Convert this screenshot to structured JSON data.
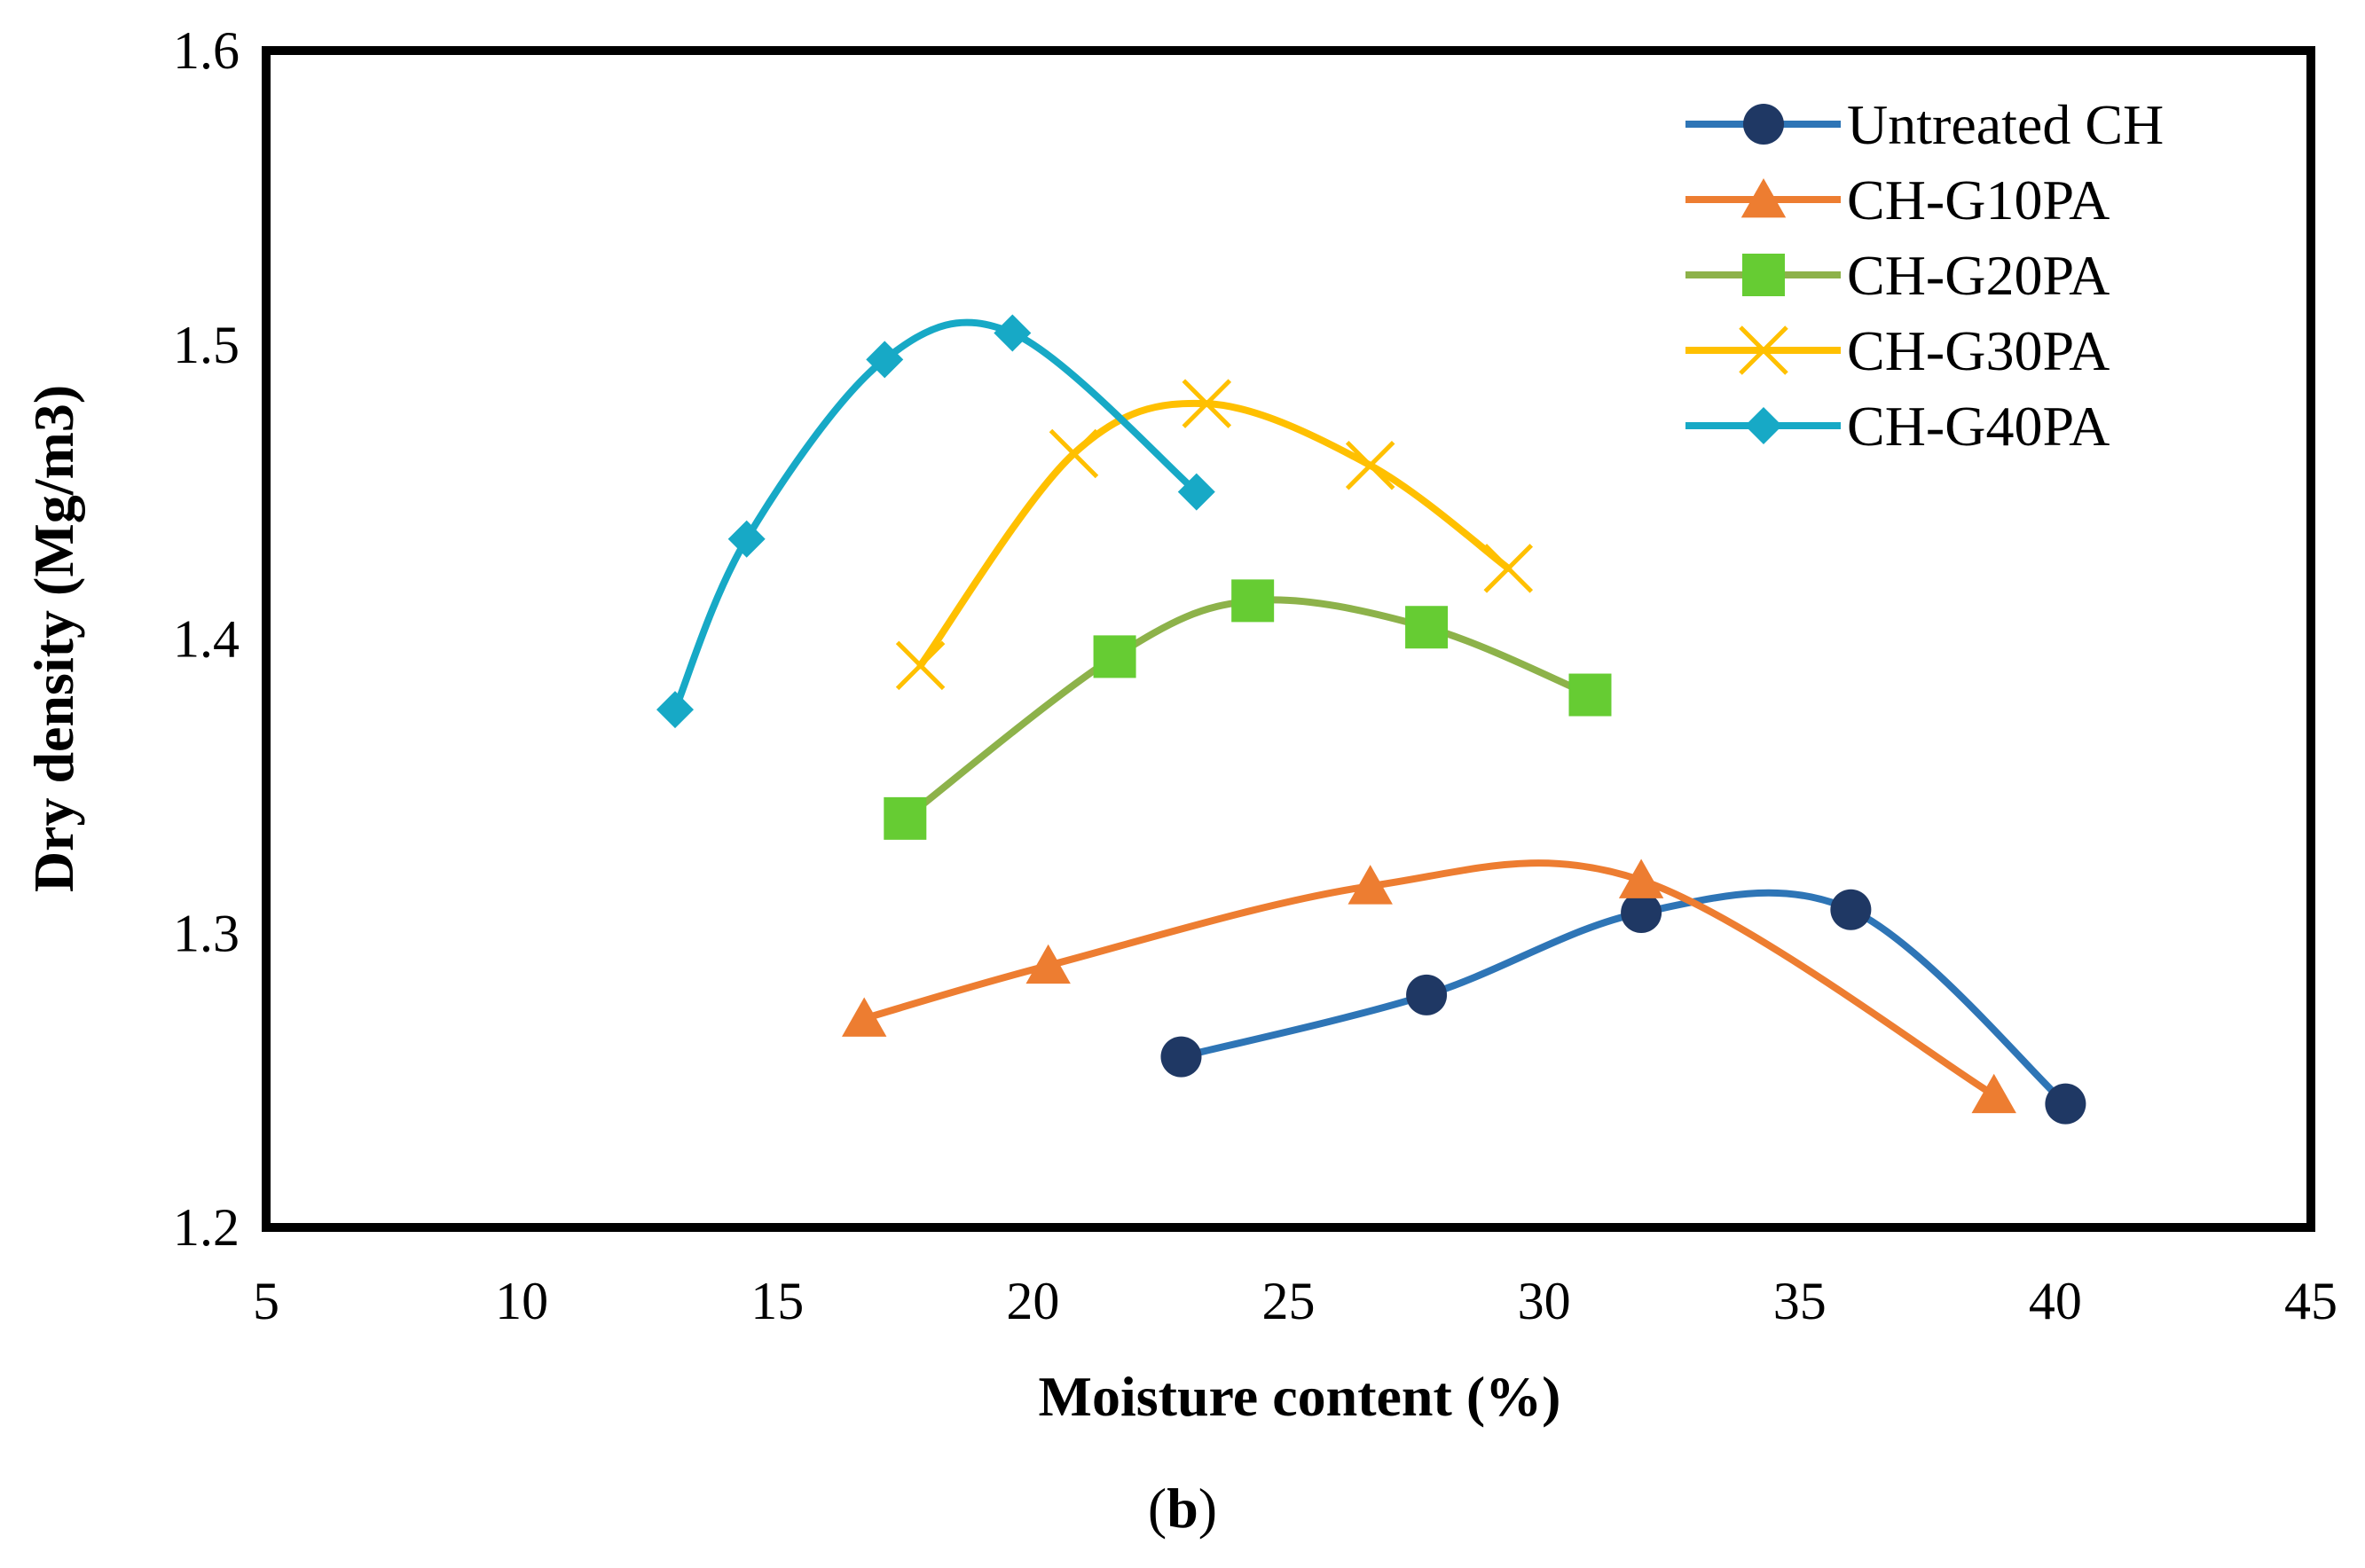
{
  "chart_data": {
    "type": "line",
    "title": "",
    "xlabel": "Moisture content (%)",
    "ylabel": "Dry density (Mg/m3)",
    "xlim": [
      5,
      45
    ],
    "ylim": [
      1.2,
      1.6
    ],
    "x_ticks": [
      5,
      10,
      15,
      20,
      25,
      30,
      35,
      40,
      45
    ],
    "x_tick_labels": [
      "5",
      "10",
      "15",
      "20",
      "25",
      "30",
      "35",
      "40",
      "45"
    ],
    "y_ticks": [
      1.2,
      1.3,
      1.4,
      1.5,
      1.6
    ],
    "y_tick_labels": [
      "1.2",
      "1.3",
      "1.4",
      "1.5",
      "1.6"
    ],
    "grid": false,
    "legend_position": "top-right",
    "panel_label": {
      "open": "(",
      "letter": "b",
      "close": ")"
    },
    "series": [
      {
        "name": "Untreated CH",
        "color": "#2E75B6",
        "marker": "circle",
        "marker_color": "#1F3864",
        "points": [
          [
            22.9,
            1.258
          ],
          [
            27.7,
            1.279
          ],
          [
            31.9,
            1.307
          ],
          [
            36.0,
            1.308
          ],
          [
            40.2,
            1.242
          ]
        ]
      },
      {
        "name": "CH-G10PA",
        "color": "#ED7D31",
        "marker": "triangle",
        "marker_color": "#ED7D31",
        "points": [
          [
            16.7,
            1.271
          ],
          [
            20.3,
            1.289
          ],
          [
            26.6,
            1.316
          ],
          [
            31.9,
            1.318
          ],
          [
            38.8,
            1.245
          ]
        ]
      },
      {
        "name": "CH-G20PA",
        "color": "#8DB24A",
        "marker": "square",
        "marker_color": "#66CC33",
        "points": [
          [
            17.5,
            1.339
          ],
          [
            21.6,
            1.394
          ],
          [
            24.3,
            1.413
          ],
          [
            27.7,
            1.404
          ],
          [
            30.9,
            1.381
          ]
        ]
      },
      {
        "name": "CH-G30PA",
        "color": "#FFC000",
        "marker": "x",
        "marker_color": "#FFC000",
        "points": [
          [
            17.8,
            1.391
          ],
          [
            20.8,
            1.463
          ],
          [
            23.4,
            1.48
          ],
          [
            26.6,
            1.459
          ],
          [
            29.3,
            1.424
          ]
        ]
      },
      {
        "name": "CH-G40PA",
        "color": "#17A9C6",
        "marker": "diamond",
        "marker_color": "#17A9C6",
        "points": [
          [
            13.0,
            1.376
          ],
          [
            14.4,
            1.434
          ],
          [
            17.1,
            1.495
          ],
          [
            19.6,
            1.504
          ],
          [
            23.2,
            1.45
          ]
        ]
      }
    ]
  }
}
